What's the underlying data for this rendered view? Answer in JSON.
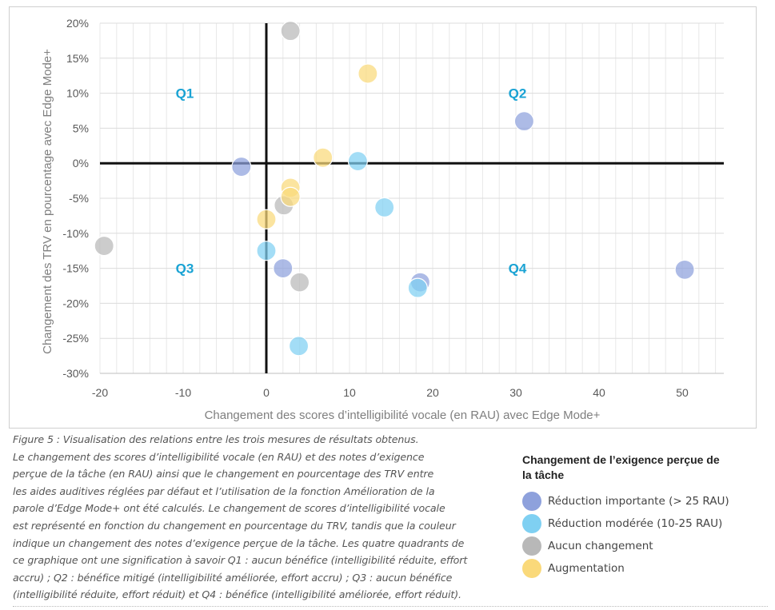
{
  "chart_data": {
    "type": "scatter",
    "xlabel": "Changement des scores d’intelligibilité vocale (en RAU) avec Edge Mode+",
    "ylabel": "Changement des TRV en pourcentage avec Edge Mode+",
    "xlim": [
      -20,
      55
    ],
    "ylim": [
      -30,
      20
    ],
    "x_ticks": [
      -20,
      -10,
      0,
      10,
      20,
      30,
      40,
      50
    ],
    "x_tick_labels": [
      "-20",
      "-10",
      "0",
      "10",
      "20",
      "30",
      "40",
      "50"
    ],
    "y_ticks": [
      20,
      15,
      10,
      5,
      0,
      -5,
      -10,
      -15,
      -20,
      -25,
      -30
    ],
    "y_tick_labels": [
      "20%",
      "15%",
      "10%",
      "5%",
      "0%",
      "-5%",
      "-10%",
      "-15%",
      "-20%",
      "-25%",
      "-30%"
    ],
    "grid": true,
    "legend_position": "bottom-right",
    "quadrant_labels": [
      {
        "label": "Q1",
        "x": -10,
        "y": 10
      },
      {
        "label": "Q2",
        "x": 30,
        "y": 10
      },
      {
        "label": "Q3",
        "x": -10,
        "y": -15
      },
      {
        "label": "Q4",
        "x": 30,
        "y": -15
      }
    ],
    "series": [
      {
        "name": "Réduction importante (> 25 RAU)",
        "color": "#8ea1dc",
        "points": [
          [
            -3,
            -0.5
          ],
          [
            31,
            6
          ],
          [
            2,
            -15
          ],
          [
            18.5,
            -17
          ],
          [
            50.3,
            -15.2
          ]
        ]
      },
      {
        "name": "Réduction modérée (10-25 RAU)",
        "color": "#7fd0f2",
        "points": [
          [
            11,
            0.3
          ],
          [
            14.2,
            -6.3
          ],
          [
            0,
            -12.5
          ],
          [
            18.2,
            -17.8
          ],
          [
            3.9,
            -26.1
          ]
        ]
      },
      {
        "name": "Aucun changement",
        "color": "#b8b8b8",
        "points": [
          [
            2.9,
            18.9
          ],
          [
            -19.5,
            -11.8
          ],
          [
            2.1,
            -6
          ],
          [
            4,
            -17
          ]
        ]
      },
      {
        "name": "Augmentation",
        "color": "#fad97a",
        "points": [
          [
            12.2,
            12.8
          ],
          [
            6.8,
            0.8
          ],
          [
            2.9,
            -3.5
          ],
          [
            2.9,
            -4.8
          ],
          [
            0,
            -8
          ]
        ]
      }
    ]
  },
  "caption_lines": [
    "Figure 5 : Visualisation des relations entre les trois mesures de résultats obtenus.",
    "Le changement des scores d’intelligibilité vocale (en RAU) et des notes d’exigence",
    "perçue de la tâche (en RAU) ainsi que le changement en pourcentage des TRV entre",
    "les aides auditives réglées par défaut et l’utilisation de la fonction Amélioration de la",
    "parole d’Edge Mode+ ont été calculés. Le changement de scores d’intelligibilité vocale",
    "est représenté en fonction du changement en pourcentage du TRV, tandis que la couleur",
    "indique un changement des notes d’exigence perçue de la tâche. Les quatre quadrants de",
    "ce graphique ont une signification à savoir Q1 : aucun bénéfice (intelligibilité réduite, effort",
    "accru) ; Q2 : bénéfice mitigé (intelligibilité améliorée, effort accru) ; Q3 : aucun bénéfice",
    "(intelligibilité réduite, effort réduit) et Q4 : bénéfice (intelligibilité améliorée, effort réduit)."
  ],
  "legend": {
    "title": "Changement de l’exigence perçue de la tâche",
    "items": [
      {
        "label": "Réduction importante (> 25 RAU)",
        "color": "#8ea1dc"
      },
      {
        "label": "Réduction modérée (10-25 RAU)",
        "color": "#7fd0f2"
      },
      {
        "label": "Aucun changement",
        "color": "#b8b8b8"
      },
      {
        "label": "Augmentation",
        "color": "#fad97a"
      }
    ]
  }
}
